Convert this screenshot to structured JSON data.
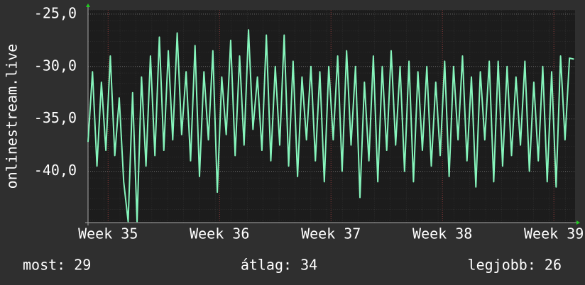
{
  "chart_data": {
    "type": "line",
    "y_label": "onlinestream.live",
    "x": [
      34.82,
      34.86,
      34.9,
      34.94,
      34.98,
      35.02,
      35.06,
      35.1,
      35.14,
      35.18,
      35.22,
      35.26,
      35.3,
      35.34,
      35.38,
      35.42,
      35.46,
      35.5,
      35.54,
      35.58,
      35.62,
      35.66,
      35.7,
      35.74,
      35.78,
      35.82,
      35.86,
      35.9,
      35.94,
      35.98,
      36.02,
      36.06,
      36.1,
      36.14,
      36.18,
      36.22,
      36.26,
      36.3,
      36.34,
      36.38,
      36.42,
      36.46,
      36.5,
      36.54,
      36.58,
      36.62,
      36.66,
      36.7,
      36.74,
      36.78,
      36.82,
      36.86,
      36.9,
      36.94,
      36.98,
      37.02,
      37.06,
      37.1,
      37.14,
      37.18,
      37.22,
      37.26,
      37.3,
      37.34,
      37.38,
      37.42,
      37.46,
      37.5,
      37.54,
      37.58,
      37.62,
      37.66,
      37.7,
      37.74,
      37.78,
      37.82,
      37.86,
      37.9,
      37.94,
      37.98,
      38.02,
      38.06,
      38.1,
      38.14,
      38.18,
      38.22,
      38.26,
      38.3,
      38.34,
      38.38,
      38.42,
      38.46,
      38.5,
      38.54,
      38.58,
      38.62,
      38.66,
      38.7,
      38.74,
      38.78,
      38.82,
      38.86,
      38.9,
      38.94,
      38.98,
      39.02,
      39.06,
      39.1,
      39.14,
      39.18
    ],
    "series": [
      {
        "color": "#86f5bc",
        "values": [
          -37.2,
          -30.5,
          -39.5,
          -31.5,
          -38.0,
          -29.0,
          -38.5,
          -33.0,
          -41.0,
          -44.8,
          -32.5,
          -44.8,
          -31.0,
          -39.5,
          -29.0,
          -38.5,
          -27.2,
          -38.0,
          -28.5,
          -37.0,
          -26.8,
          -36.5,
          -30.5,
          -39.0,
          -28.0,
          -40.5,
          -30.5,
          -37.0,
          -28.5,
          -42.0,
          -31.0,
          -36.5,
          -27.5,
          -38.5,
          -29.0,
          -37.5,
          -26.5,
          -36.0,
          -31.0,
          -38.0,
          -27.0,
          -39.0,
          -30.0,
          -37.5,
          -27.0,
          -39.5,
          -29.5,
          -40.5,
          -31.0,
          -37.0,
          -30.0,
          -39.0,
          -30.5,
          -41.0,
          -30.0,
          -37.0,
          -29.0,
          -40.0,
          -28.5,
          -37.5,
          -30.0,
          -42.5,
          -31.5,
          -39.0,
          -29.0,
          -41.0,
          -30.0,
          -38.0,
          -28.5,
          -37.5,
          -30.0,
          -40.0,
          -29.5,
          -41.0,
          -30.5,
          -38.0,
          -30.0,
          -39.5,
          -31.5,
          -38.5,
          -29.5,
          -40.5,
          -30.0,
          -37.0,
          -29.0,
          -39.0,
          -31.0,
          -41.5,
          -30.5,
          -37.0,
          -29.5,
          -41.0,
          -29.5,
          -39.5,
          -30.0,
          -38.5,
          -31.0,
          -37.5,
          -29.5,
          -40.0,
          -31.5,
          -39.0,
          -30.0,
          -41.0,
          -30.5,
          -41.5,
          -29.0,
          -37.0,
          -29.2,
          -29.3
        ]
      }
    ],
    "xlim": [
      34.82,
      39.19
    ],
    "xticks": [
      {
        "value": 35,
        "label": "Week 35"
      },
      {
        "value": 36,
        "label": "Week 36"
      },
      {
        "value": 37,
        "label": "Week 37"
      },
      {
        "value": 38,
        "label": "Week 38"
      },
      {
        "value": 39,
        "label": "Week 39"
      }
    ],
    "ylim": [
      -44.9,
      -24.6
    ],
    "yticks": [
      {
        "value": -25,
        "label": "-25,0"
      },
      {
        "value": -30,
        "label": "-30,0"
      },
      {
        "value": -35,
        "label": "-35,0"
      },
      {
        "value": -40,
        "label": "-40,0"
      }
    ],
    "grid": true,
    "stats": [
      "most: 29",
      "átlag: 34",
      "legjobb: 26"
    ]
  }
}
